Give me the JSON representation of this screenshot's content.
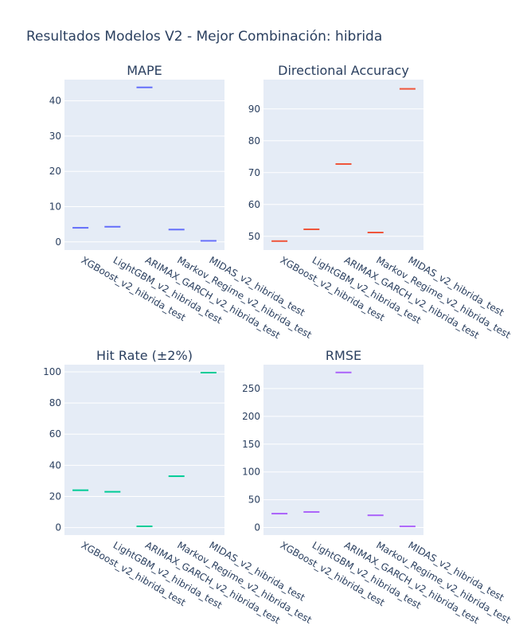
{
  "page_title": "Resultados Modelos V2 - Mejor Combinación: hibrida",
  "colors": {
    "plot_bg": "#e5ecf6",
    "grid": "#ffffff",
    "text": "#2a3f5f",
    "mape": "#636efa",
    "directional_accuracy": "#ef553b",
    "hit_rate": "#00cc96",
    "rmse": "#ab63fa"
  },
  "chart_data": [
    {
      "type": "bar",
      "title": "MAPE",
      "categories": [
        "XGBoost_v2_hibrida_test",
        "LightGBM_v2_hibrida_test",
        "ARIMAX_GARCH_v2_hibrida_test",
        "Markov_Regime_v2_hibrida_test",
        "MIDAS_v2_hibrida_test"
      ],
      "values": [
        4.0,
        4.3,
        43.8,
        3.5,
        0.3
      ],
      "ylim": [
        -2.3,
        46
      ],
      "yticks": [
        0,
        10,
        20,
        30,
        40
      ],
      "color": "#636efa",
      "grid": true
    },
    {
      "type": "bar",
      "title": "Directional Accuracy",
      "categories": [
        "XGBoost_v2_hibrida_test",
        "LightGBM_v2_hibrida_test",
        "ARIMAX_GARCH_v2_hibrida_test",
        "Markov_Regime_v2_hibrida_test",
        "MIDAS_v2_hibrida_test"
      ],
      "values": [
        48.5,
        52.2,
        72.7,
        51.2,
        96.3
      ],
      "ylim": [
        45.7,
        99.2
      ],
      "yticks": [
        50,
        60,
        70,
        80,
        90
      ],
      "color": "#ef553b",
      "grid": true
    },
    {
      "type": "bar",
      "title": "Hit Rate (±2%)",
      "categories": [
        "XGBoost_v2_hibrida_test",
        "LightGBM_v2_hibrida_test",
        "ARIMAX_GARCH_v2_hibrida_test",
        "Markov_Regime_v2_hibrida_test",
        "MIDAS_v2_hibrida_test"
      ],
      "values": [
        24.0,
        23.0,
        0.8,
        33.0,
        99.5
      ],
      "ylim": [
        -4.8,
        104.6
      ],
      "yticks": [
        0,
        20,
        40,
        60,
        80,
        100
      ],
      "color": "#00cc96",
      "grid": true
    },
    {
      "type": "bar",
      "title": "RMSE",
      "categories": [
        "XGBoost_v2_hibrida_test",
        "LightGBM_v2_hibrida_test",
        "ARIMAX_GARCH_v2_hibrida_test",
        "Markov_Regime_v2_hibrida_test",
        "MIDAS_v2_hibrida_test"
      ],
      "values": [
        25,
        28,
        279,
        22,
        2
      ],
      "ylim": [
        -13.6,
        293
      ],
      "yticks": [
        0,
        50,
        100,
        150,
        200,
        250
      ],
      "color": "#ab63fa",
      "grid": true
    }
  ]
}
